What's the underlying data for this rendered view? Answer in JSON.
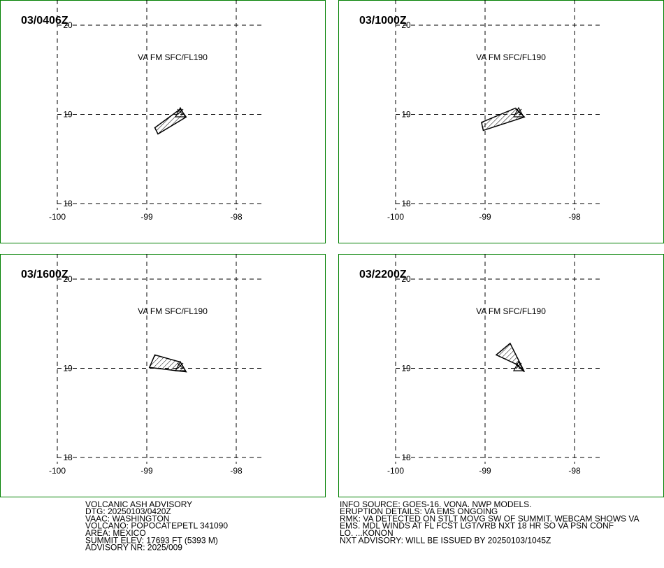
{
  "xticks": [
    -100,
    -99,
    -98
  ],
  "yticks": [
    20,
    19,
    18
  ],
  "panels": [
    {
      "time": "03/0406Z",
      "label": "VA FM SFC/FL190",
      "ash_area": [
        {
          "lon": -98.625,
          "lat": 19.06
        },
        {
          "lon": -98.56,
          "lat": 18.97
        },
        {
          "lon": -98.875,
          "lat": 18.78
        },
        {
          "lon": -98.91,
          "lat": 18.85
        }
      ]
    },
    {
      "time": "03/1000Z",
      "label": "VA FM SFC/FL190",
      "ash_area": [
        {
          "lon": -98.66,
          "lat": 19.07
        },
        {
          "lon": -98.56,
          "lat": 18.97
        },
        {
          "lon": -99.02,
          "lat": 18.82
        },
        {
          "lon": -99.04,
          "lat": 18.91
        }
      ]
    },
    {
      "time": "03/1600Z",
      "label": "VA FM SFC/FL190",
      "ash_area": [
        {
          "lon": -98.91,
          "lat": 19.15
        },
        {
          "lon": -98.625,
          "lat": 19.07
        },
        {
          "lon": -98.56,
          "lat": 18.96
        },
        {
          "lon": -98.97,
          "lat": 19.01
        }
      ]
    },
    {
      "time": "03/2200Z",
      "label": "VA FM SFC/FL190",
      "ash_area": [
        {
          "lon": -98.875,
          "lat": 19.15
        },
        {
          "lon": -98.72,
          "lat": 19.28
        },
        {
          "lon": -98.56,
          "lat": 18.96
        },
        {
          "lon": -98.66,
          "lat": 19.05
        }
      ]
    }
  ],
  "advisory_left": [
    "VOLCANIC ASH ADVISORY",
    "DTG: 20250103/0420Z",
    "VAAC: WASHINGTON",
    "VOLCANO: POPOCATEPETL 341090",
    "AREA: MEXICO",
    "SUMMIT ELEV: 17693 FT (5393 M)",
    "ADVISORY NR: 2025/009"
  ],
  "advisory_right": [
    "INFO SOURCE: GOES-16. VONA. NWP MODELS.",
    "ERUPTION DETAILS: VA EMS ONGOING",
    "RMK: VA DETECTED ON STLT MOVG SW OF SUMMIT. WEBCAM SHOWS VA",
    "EMS. MDL WINDS AT FL FCST LGT/VRB NXT 18 HR SO VA PSN CONF",
    "LO. ...KONON",
    "NXT ADVISORY: WILL BE ISSUED BY 20250103/1045Z"
  ]
}
